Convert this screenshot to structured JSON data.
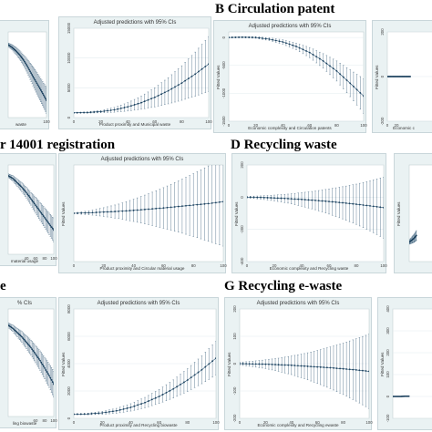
{
  "section_titles": {
    "b": "B Circulation patent",
    "c": "r 14001 registration",
    "d": "D Recycling waste",
    "e": "e",
    "g": "G Recycling e-waste"
  },
  "chart_data": [
    {
      "id": "p1",
      "type": "line",
      "title": "",
      "xlabel": "waste",
      "ylabel": "",
      "ylim": [
        0,
        1
      ],
      "xlim": [
        0,
        100
      ],
      "y_ticks": [],
      "x_ticks": [
        {
          "v": 100,
          "t": "100"
        }
      ],
      "x": [
        0,
        10,
        20,
        30,
        40,
        50,
        60,
        70,
        80,
        90,
        100
      ],
      "y": [
        0.85,
        0.82,
        0.78,
        0.73,
        0.67,
        0.6,
        0.52,
        0.44,
        0.36,
        0.28,
        0.2
      ],
      "ci": [
        0.02,
        0.03,
        0.04,
        0.05,
        0.06,
        0.08,
        0.1,
        0.12,
        0.13,
        0.14,
        0.15
      ]
    },
    {
      "id": "p2",
      "type": "line",
      "title": "Adjusted predictions with 95% CIs",
      "xlabel": "Product proximity and Municipal waste",
      "ylabel": "",
      "ylim": [
        0,
        15000
      ],
      "xlim": [
        0,
        100
      ],
      "y_ticks": [
        {
          "v": 0,
          "t": "0"
        },
        {
          "v": 5000,
          "t": "5000"
        },
        {
          "v": 10000,
          "t": "10000"
        },
        {
          "v": 15000,
          "t": "15000"
        }
      ],
      "x_ticks": [
        {
          "v": 0,
          "t": "0"
        },
        {
          "v": 20,
          "t": "20"
        },
        {
          "v": 40,
          "t": "40"
        },
        {
          "v": 60,
          "t": "60"
        },
        {
          "v": 80,
          "t": "80"
        },
        {
          "v": 100,
          "t": "100"
        }
      ],
      "x": [
        0,
        10,
        20,
        30,
        40,
        50,
        60,
        70,
        80,
        90,
        100
      ],
      "y": [
        800,
        850,
        1000,
        1300,
        1800,
        2500,
        3400,
        4500,
        5800,
        7300,
        9000
      ],
      "ci": [
        50,
        100,
        200,
        400,
        700,
        1100,
        1600,
        2200,
        2900,
        3700,
        4600
      ]
    },
    {
      "id": "p3",
      "type": "line",
      "title": "Adjusted predictions with 95% CIs",
      "xlabel": "Economic complexity and Circulation patents",
      "ylabel": "Fitted Values",
      "ylim": [
        -1500,
        100
      ],
      "xlim": [
        0,
        100
      ],
      "y_ticks": [
        {
          "v": 0,
          "t": "0"
        },
        {
          "v": -500,
          "t": "-500"
        },
        {
          "v": -1000,
          "t": "-1000"
        },
        {
          "v": -1500,
          "t": "-1500"
        }
      ],
      "x_ticks": [
        {
          "v": 0,
          "t": "0"
        },
        {
          "v": 20,
          "t": "20"
        },
        {
          "v": 40,
          "t": "40"
        },
        {
          "v": 60,
          "t": "60"
        },
        {
          "v": 80,
          "t": "80"
        },
        {
          "v": 100,
          "t": "100"
        }
      ],
      "x": [
        0,
        10,
        20,
        30,
        40,
        50,
        60,
        70,
        80,
        90,
        100
      ],
      "y": [
        0,
        5,
        0,
        -30,
        -80,
        -160,
        -270,
        -420,
        -600,
        -820,
        -1050
      ],
      "ci": [
        10,
        10,
        15,
        25,
        40,
        60,
        90,
        130,
        180,
        240,
        310
      ]
    },
    {
      "id": "p4",
      "type": "line",
      "title": "",
      "xlabel": "Economic c",
      "ylabel": "Fitted Values",
      "ylim": [
        -200,
        200
      ],
      "xlim": [
        0,
        100
      ],
      "y_ticks": [
        {
          "v": 200,
          "t": "200"
        },
        {
          "v": 0,
          "t": "0"
        },
        {
          "v": -200,
          "t": "-200"
        }
      ],
      "x_ticks": [
        {
          "v": 0,
          "t": "0"
        },
        {
          "v": 20,
          "t": "20"
        }
      ],
      "x": [
        0,
        10,
        20,
        30,
        40,
        50
      ],
      "y": [
        0,
        0,
        0,
        0,
        0,
        0
      ],
      "ci": [
        2,
        2,
        2,
        2,
        2,
        2
      ]
    },
    {
      "id": "p5",
      "type": "line",
      "title": "",
      "xlabel": "material usage",
      "ylabel": "",
      "ylim": [
        0,
        1
      ],
      "xlim": [
        0,
        100
      ],
      "y_ticks": [],
      "x_ticks": [
        {
          "v": 40,
          "t": "40"
        },
        {
          "v": 60,
          "t": "60"
        },
        {
          "v": 80,
          "t": "80"
        },
        {
          "v": 100,
          "t": "100"
        }
      ],
      "x": [
        0,
        10,
        20,
        30,
        40,
        50,
        60,
        70,
        80,
        90,
        100
      ],
      "y": [
        0.88,
        0.85,
        0.8,
        0.75,
        0.69,
        0.62,
        0.55,
        0.48,
        0.41,
        0.34,
        0.27
      ],
      "ci": [
        0.02,
        0.03,
        0.04,
        0.05,
        0.06,
        0.07,
        0.09,
        0.1,
        0.11,
        0.12,
        0.13
      ]
    },
    {
      "id": "p6",
      "type": "line",
      "title": "Adjusted predictions with 95% CIs",
      "xlabel": "Product proximity and Circular material usage",
      "ylabel": "Fitted Values",
      "ylim": [
        -1000,
        1000
      ],
      "xlim": [
        0,
        100
      ],
      "y_ticks": [],
      "x_ticks": [
        {
          "v": 0,
          "t": "0"
        },
        {
          "v": 20,
          "t": "20"
        },
        {
          "v": 40,
          "t": "40"
        },
        {
          "v": 60,
          "t": "60"
        },
        {
          "v": 80,
          "t": "80"
        },
        {
          "v": 100,
          "t": "100"
        }
      ],
      "x": [
        0,
        10,
        20,
        30,
        40,
        50,
        60,
        70,
        80,
        90,
        100
      ],
      "y": [
        0,
        10,
        25,
        40,
        60,
        85,
        110,
        140,
        170,
        200,
        240
      ],
      "ci": [
        10,
        40,
        90,
        150,
        230,
        320,
        420,
        530,
        650,
        780,
        920
      ]
    },
    {
      "id": "p7",
      "type": "line",
      "title": "",
      "xlabel": "Economic complexity and Recycling waste",
      "ylabel": "Fitted Values",
      "ylim": [
        -400,
        200
      ],
      "xlim": [
        0,
        100
      ],
      "y_ticks": [
        {
          "v": 200,
          "t": "200"
        },
        {
          "v": 0,
          "t": "0"
        },
        {
          "v": -200,
          "t": "-200"
        },
        {
          "v": -400,
          "t": "-400"
        }
      ],
      "x_ticks": [
        {
          "v": 0,
          "t": "0"
        },
        {
          "v": 20,
          "t": "20"
        },
        {
          "v": 40,
          "t": "40"
        },
        {
          "v": 60,
          "t": "60"
        },
        {
          "v": 80,
          "t": "80"
        },
        {
          "v": 100,
          "t": "100"
        }
      ],
      "x": [
        0,
        10,
        20,
        30,
        40,
        50,
        60,
        70,
        80,
        90,
        100
      ],
      "y": [
        0,
        -2,
        -5,
        -9,
        -14,
        -20,
        -27,
        -35,
        -44,
        -54,
        -65
      ],
      "ci": [
        5,
        10,
        18,
        28,
        42,
        58,
        78,
        100,
        125,
        155,
        190
      ]
    },
    {
      "id": "p8",
      "type": "line",
      "title": "",
      "xlabel": "",
      "ylabel": "Fitted Values",
      "ylim": [
        0,
        100
      ],
      "xlim": [
        0,
        100
      ],
      "y_ticks": [],
      "x_ticks": [],
      "x": [
        0,
        10,
        20,
        30
      ],
      "y": [
        20,
        22,
        24,
        27
      ],
      "ci": [
        2,
        3,
        4,
        5
      ]
    },
    {
      "id": "p9",
      "type": "line",
      "title": "% CIs",
      "xlabel": "ling biowaste",
      "ylabel": "",
      "ylim": [
        0,
        1
      ],
      "xlim": [
        0,
        100
      ],
      "y_ticks": [],
      "x_ticks": [
        {
          "v": 60,
          "t": "60"
        },
        {
          "v": 80,
          "t": "80"
        },
        {
          "v": 100,
          "t": "100"
        }
      ],
      "x": [
        0,
        10,
        20,
        30,
        40,
        50,
        60,
        70,
        80,
        90,
        100
      ],
      "y": [
        0.85,
        0.82,
        0.78,
        0.74,
        0.69,
        0.64,
        0.58,
        0.52,
        0.45,
        0.38,
        0.3
      ],
      "ci": [
        0.02,
        0.03,
        0.04,
        0.05,
        0.06,
        0.07,
        0.08,
        0.09,
        0.1,
        0.11,
        0.12
      ]
    },
    {
      "id": "p10",
      "type": "line",
      "title": "Adjusted predictions with 95% CIs",
      "xlabel": "Product proximity and Recycling biowaste",
      "ylabel": "Fitted Values",
      "ylim": [
        0,
        8000
      ],
      "xlim": [
        0,
        100
      ],
      "y_ticks": [
        {
          "v": 0,
          "t": "0"
        },
        {
          "v": 2000,
          "t": "2000"
        },
        {
          "v": 4000,
          "t": "4000"
        },
        {
          "v": 6000,
          "t": "6000"
        },
        {
          "v": 8000,
          "t": "8000"
        }
      ],
      "x_ticks": [
        {
          "v": 0,
          "t": "0"
        },
        {
          "v": 20,
          "t": "20"
        },
        {
          "v": 40,
          "t": "40"
        },
        {
          "v": 60,
          "t": "60"
        },
        {
          "v": 80,
          "t": "80"
        },
        {
          "v": 100,
          "t": "100"
        }
      ],
      "x": [
        0,
        10,
        20,
        30,
        40,
        50,
        60,
        70,
        80,
        90,
        100
      ],
      "y": [
        300,
        320,
        400,
        550,
        800,
        1150,
        1600,
        2150,
        2800,
        3550,
        4400
      ],
      "ci": [
        30,
        60,
        110,
        180,
        270,
        380,
        510,
        660,
        830,
        1020,
        1230
      ]
    },
    {
      "id": "p11",
      "type": "line",
      "title": "Adjusted predictions with 95% CIs",
      "xlabel": "Economic complexity and Recycling ewaste",
      "ylabel": "Fitted Values",
      "ylim": [
        -200,
        200
      ],
      "xlim": [
        0,
        100
      ],
      "y_ticks": [
        {
          "v": 200,
          "t": "200"
        },
        {
          "v": 100,
          "t": "100"
        },
        {
          "v": 0,
          "t": "0"
        },
        {
          "v": -100,
          "t": "-100"
        },
        {
          "v": -200,
          "t": "-200"
        }
      ],
      "x_ticks": [
        {
          "v": 0,
          "t": "0"
        },
        {
          "v": 20,
          "t": "20"
        },
        {
          "v": 40,
          "t": "40"
        },
        {
          "v": 60,
          "t": "60"
        },
        {
          "v": 80,
          "t": "80"
        },
        {
          "v": 100,
          "t": "100"
        }
      ],
      "x": [
        0,
        10,
        20,
        30,
        40,
        50,
        60,
        70,
        80,
        90,
        100
      ],
      "y": [
        0,
        -1,
        -2,
        -4,
        -6,
        -9,
        -12,
        -15,
        -19,
        -23,
        -28
      ],
      "ci": [
        5,
        10,
        16,
        24,
        34,
        46,
        60,
        76,
        94,
        114,
        136
      ]
    },
    {
      "id": "p12",
      "type": "line",
      "title": "",
      "xlabel": "",
      "ylabel": "Fitted Values",
      "ylim": [
        -100,
        400
      ],
      "xlim": [
        0,
        100
      ],
      "y_ticks": [
        {
          "v": 400,
          "t": "400"
        },
        {
          "v": 300,
          "t": "300"
        },
        {
          "v": 200,
          "t": "200"
        },
        {
          "v": 100,
          "t": "100"
        },
        {
          "v": 0,
          "t": "0"
        },
        {
          "v": -100,
          "t": "-100"
        }
      ],
      "x_ticks": [],
      "x": [
        0,
        10,
        20,
        30,
        40
      ],
      "y": [
        0,
        0,
        0,
        1,
        1
      ],
      "ci": [
        1,
        1,
        1,
        2,
        2
      ]
    }
  ]
}
